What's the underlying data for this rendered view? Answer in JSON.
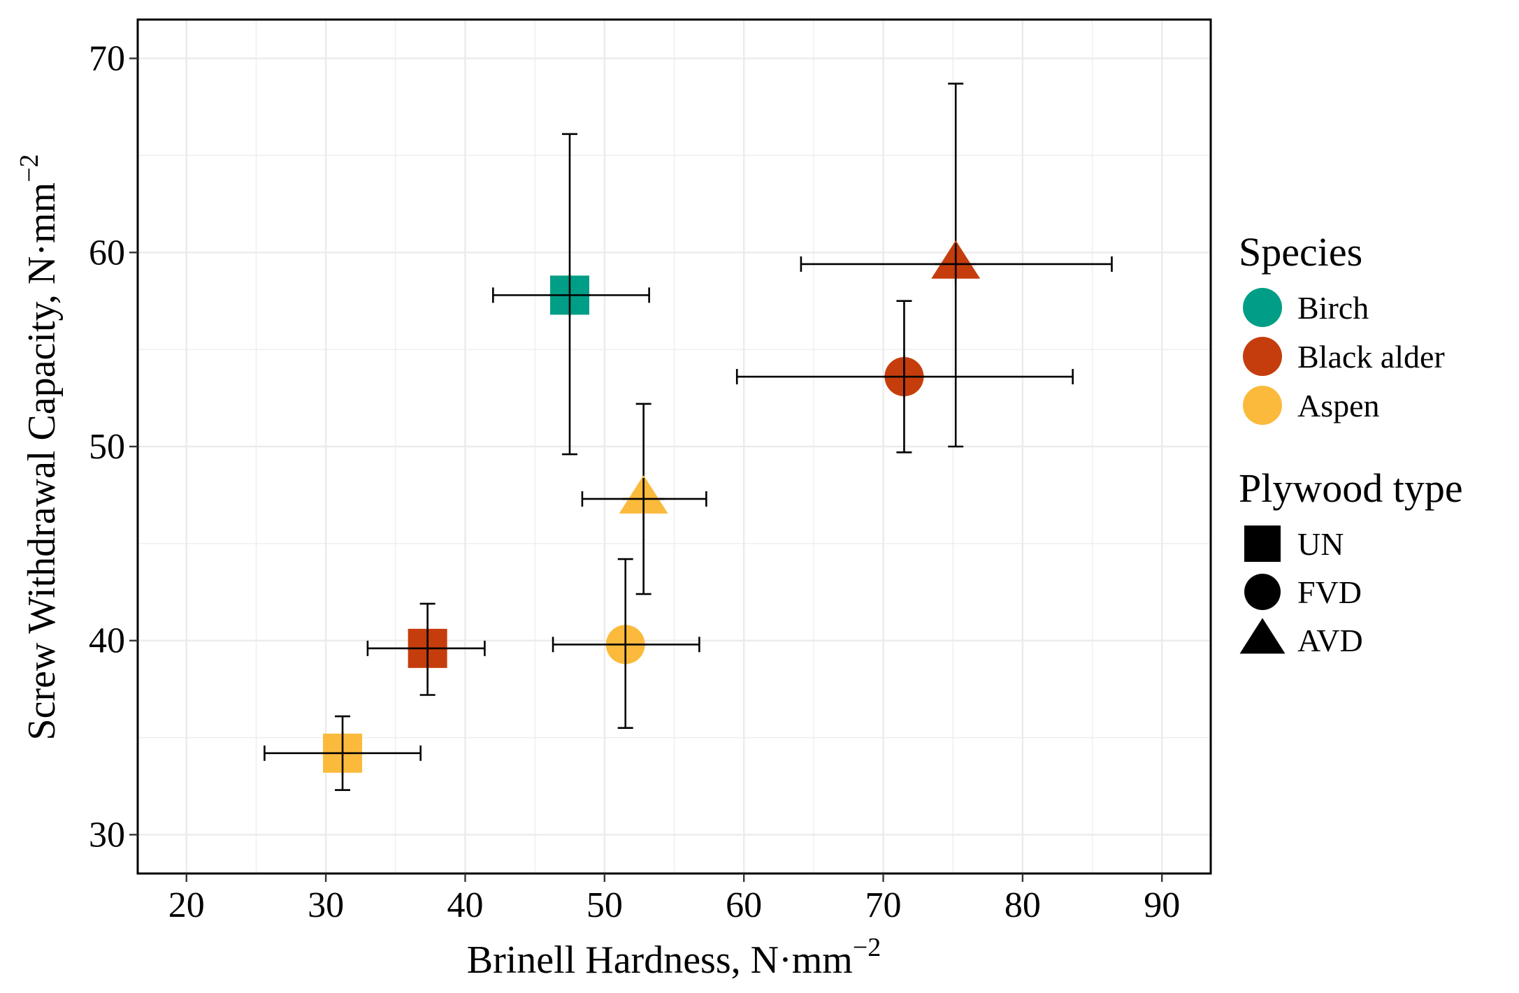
{
  "chart_data": {
    "type": "scatter",
    "xlabel": "Brinell Hardness, N·mm",
    "xlabel_sup": "−2",
    "ylabel": "Screw Withdrawal Capacity, N·mm",
    "ylabel_sup": "−2",
    "xlim": [
      16.5,
      93.5
    ],
    "ylim": [
      28,
      72
    ],
    "xticks": [
      20,
      30,
      40,
      50,
      60,
      70,
      80,
      90
    ],
    "yticks": [
      30,
      40,
      50,
      60,
      70
    ],
    "grid": true,
    "legend_placement": "right",
    "legend": {
      "species_title": "Species",
      "species": [
        {
          "name": "Birch",
          "color": "#009E86"
        },
        {
          "name": "Black alder",
          "color": "#C53D0C"
        },
        {
          "name": "Aspen",
          "color": "#FBBA3C"
        }
      ],
      "type_title": "Plywood type",
      "types": [
        {
          "name": "UN",
          "shape": "square"
        },
        {
          "name": "FVD",
          "shape": "circle"
        },
        {
          "name": "AVD",
          "shape": "triangle"
        }
      ]
    },
    "points": [
      {
        "species": "Birch",
        "type": "UN",
        "x": 47.5,
        "y": 57.8,
        "x_err": [
          42.0,
          53.2
        ],
        "y_err": [
          49.6,
          66.1
        ]
      },
      {
        "species": "Black alder",
        "type": "UN",
        "x": 37.3,
        "y": 39.6,
        "x_err": [
          33.0,
          41.4
        ],
        "y_err": [
          37.2,
          41.9
        ]
      },
      {
        "species": "Aspen",
        "type": "UN",
        "x": 31.2,
        "y": 34.2,
        "x_err": [
          25.6,
          36.8
        ],
        "y_err": [
          32.3,
          36.1
        ]
      },
      {
        "species": "Black alder",
        "type": "FVD",
        "x": 71.5,
        "y": 53.6,
        "x_err": [
          59.5,
          83.6
        ],
        "y_err": [
          49.7,
          57.5
        ]
      },
      {
        "species": "Aspen",
        "type": "FVD",
        "x": 51.5,
        "y": 39.8,
        "x_err": [
          46.3,
          56.8
        ],
        "y_err": [
          35.5,
          44.2
        ]
      },
      {
        "species": "Black alder",
        "type": "AVD",
        "x": 75.2,
        "y": 59.4,
        "x_err": [
          64.1,
          86.4
        ],
        "y_err": [
          50.0,
          68.7
        ]
      },
      {
        "species": "Aspen",
        "type": "AVD",
        "x": 52.8,
        "y": 47.3,
        "x_err": [
          48.4,
          57.3
        ],
        "y_err": [
          42.4,
          52.2
        ]
      }
    ]
  }
}
